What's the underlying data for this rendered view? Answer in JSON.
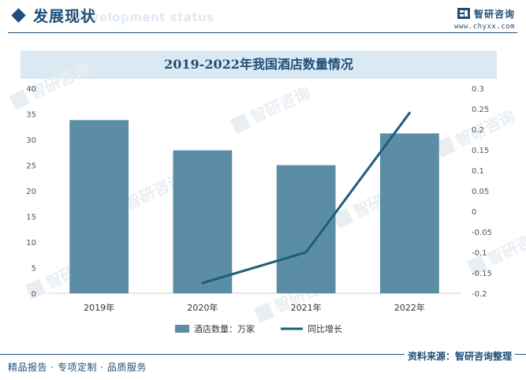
{
  "header": {
    "section_title": "发展现状",
    "section_subtitle": "Development status",
    "brand_name": "智研咨询",
    "brand_url": "www.chyxx.com",
    "logo_icon": "zhiyan-logo-icon"
  },
  "chart_data": {
    "type": "bar",
    "title": "2019-2022年我国酒店数量情况",
    "categories": [
      "2019年",
      "2020年",
      "2021年",
      "2022年"
    ],
    "series": [
      {
        "name": "酒店数量：万家",
        "type": "bar",
        "axis": "left",
        "color": "#5b8ea6",
        "values": [
          33.8,
          27.9,
          25.0,
          31.2
        ]
      },
      {
        "name": "同比增长",
        "type": "line",
        "axis": "right",
        "color": "#1f5f7a",
        "values": [
          null,
          -0.175,
          -0.1,
          0.24
        ]
      }
    ],
    "ylim_left": [
      0,
      40
    ],
    "yticks_left": [
      "0",
      "5",
      "10",
      "15",
      "20",
      "25",
      "30",
      "35",
      "40"
    ],
    "ylim_right": [
      -0.2,
      0.3
    ],
    "yticks_right": [
      "-0.2",
      "-0.15",
      "-0.1",
      "-0.05",
      "0",
      "0.05",
      "0.1",
      "0.15",
      "0.2",
      "0.25",
      "0.3"
    ],
    "legend_position": "bottom"
  },
  "watermark": {
    "text": "智研咨询"
  },
  "footer": {
    "left_text": "精品报告 · 专项定制 · 品质服务",
    "source_text": "资料来源：智研咨询整理"
  }
}
